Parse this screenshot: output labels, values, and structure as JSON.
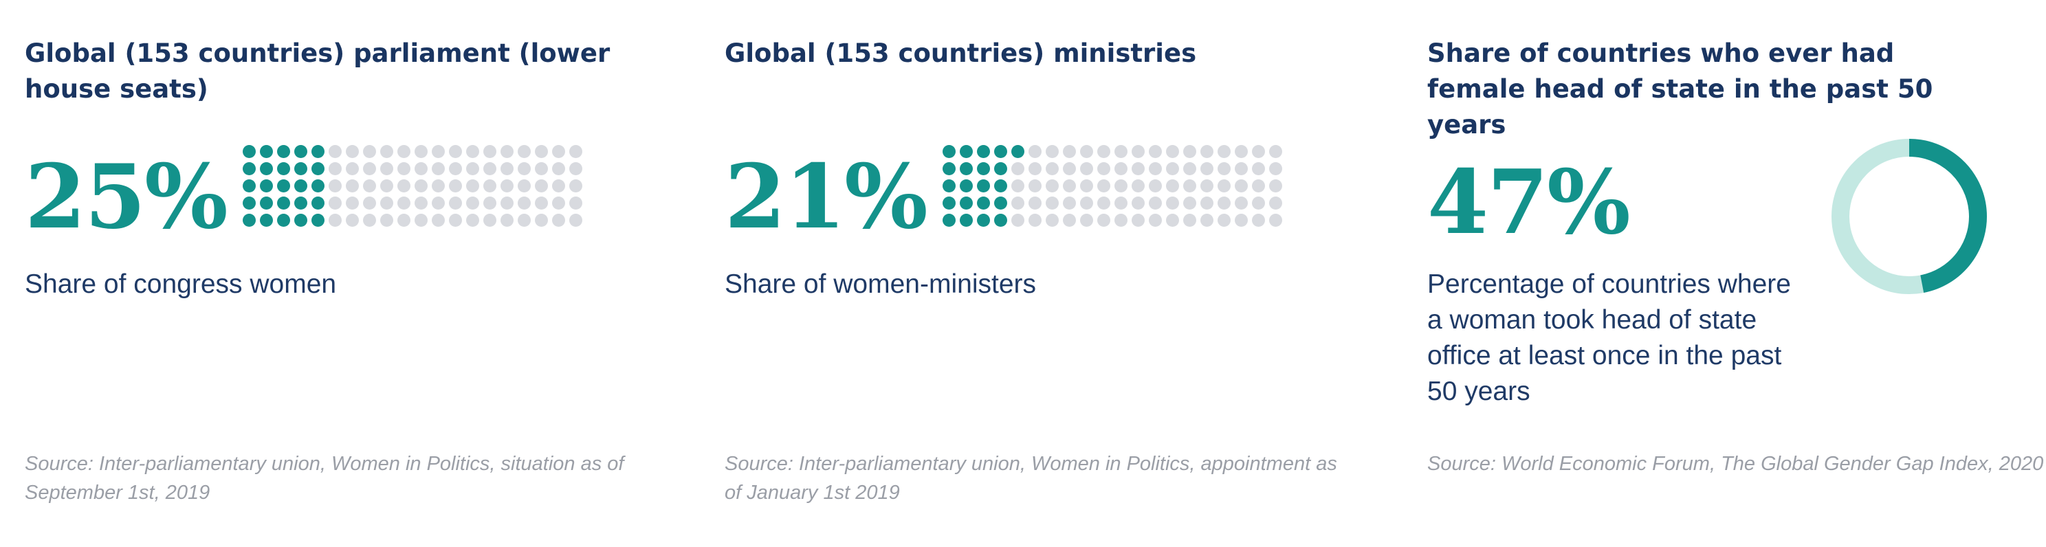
{
  "panels": [
    {
      "title": "Global (153 countries) parliament (lower house seats)",
      "value_label": "25%",
      "description": "Share of congress women",
      "source": "Source: Inter-parliamentary union, Women in Politics, situation as of September 1st, 2019"
    },
    {
      "title": "Global (153 countries) ministries",
      "value_label": "21%",
      "description": "Share of women-ministers",
      "source": "Source: Inter-parliamentary union, Women in Politics, appointment as of January 1st 2019"
    },
    {
      "title": "Share of countries who ever had female head of state in the past 50 years",
      "value_label": "47%",
      "description": "Percentage of countries where a woman took head of state office  at least once in the past 50 years",
      "source": "Source: World Economic Forum, The Global Gender Gap Index, 2020"
    }
  ],
  "colors": {
    "accent": "#13928b",
    "dot_inactive": "#d8dadf",
    "donut_track": "#c3e8e2",
    "title": "#1a3561",
    "source": "#9a9ea6"
  },
  "chart_data": [
    {
      "type": "waffle",
      "value": 25,
      "total": 100,
      "rows": 5,
      "columns": 20
    },
    {
      "type": "waffle",
      "value": 21,
      "total": 100,
      "rows": 5,
      "columns": 20
    },
    {
      "type": "pie",
      "variant": "donut",
      "value": 47,
      "total": 100
    }
  ]
}
